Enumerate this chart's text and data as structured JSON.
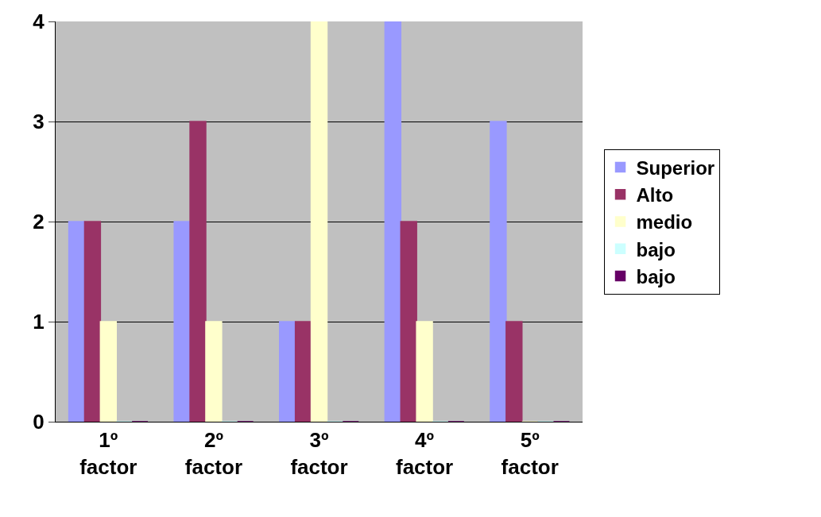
{
  "chart_data": {
    "type": "bar",
    "categories": [
      "1º factor",
      "2º factor",
      "3º factor",
      "4º factor",
      "5º factor"
    ],
    "series": [
      {
        "name": "Superior",
        "color": "#9999ff",
        "values": [
          2,
          2,
          1,
          4,
          3
        ]
      },
      {
        "name": "Alto",
        "color": "#993366",
        "values": [
          2,
          3,
          1,
          2,
          1
        ]
      },
      {
        "name": "medio",
        "color": "#ffffcc",
        "values": [
          1,
          1,
          4,
          1,
          0
        ]
      },
      {
        "name": "bajo",
        "color": "#ccffff",
        "values": [
          0,
          0,
          0,
          0,
          0
        ]
      },
      {
        "name": "bajo",
        "color": "#660066",
        "values": [
          0,
          0,
          0,
          0,
          0
        ]
      }
    ],
    "ylim": [
      0,
      4
    ],
    "yticks": [
      0,
      1,
      2,
      3,
      4
    ],
    "grid": "y",
    "legend": "right"
  }
}
